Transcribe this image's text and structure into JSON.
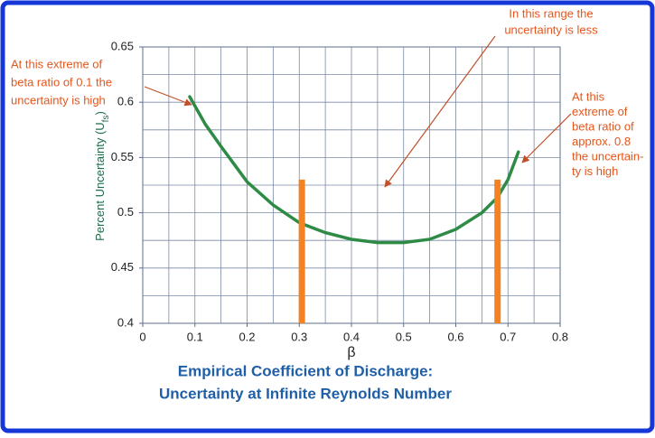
{
  "chart_data": {
    "type": "line",
    "title": [
      "Empirical Coefficient of Discharge:",
      "Uncertainty at Infinite Reynolds Number"
    ],
    "x_label": "β",
    "y_label": [
      "Percent Uncertainty (U",
      "fs",
      ")"
    ],
    "xlim": [
      0,
      0.8
    ],
    "ylim": [
      0.4,
      0.65
    ],
    "xticks": [
      0,
      0.1,
      0.2,
      0.3,
      0.4,
      0.5,
      0.6,
      0.7,
      0.8
    ],
    "yticks": [
      0.4,
      0.45,
      0.5,
      0.55,
      0.6,
      0.65
    ],
    "x_gridlines": [
      0.05,
      0.1,
      0.15,
      0.2,
      0.25,
      0.3,
      0.35,
      0.4,
      0.45,
      0.5,
      0.55,
      0.6,
      0.65,
      0.7,
      0.75
    ],
    "y_gridlines": [
      0.425,
      0.45,
      0.475,
      0.5,
      0.525,
      0.55,
      0.575,
      0.6,
      0.625
    ],
    "grid": true,
    "series": [
      {
        "color": "#2e8b45",
        "x": [
          0.09,
          0.12,
          0.15,
          0.2,
          0.25,
          0.3,
          0.35,
          0.4,
          0.45,
          0.5,
          0.55,
          0.6,
          0.65,
          0.68,
          0.7,
          0.72
        ],
        "values": [
          0.605,
          0.58,
          0.56,
          0.528,
          0.507,
          0.491,
          0.482,
          0.476,
          0.473,
          0.473,
          0.476,
          0.485,
          0.5,
          0.514,
          0.53,
          0.555
        ]
      }
    ],
    "markers": {
      "color": "#f58220",
      "x": [
        0.305,
        0.68
      ],
      "top": [
        0.53,
        0.53
      ]
    },
    "annotations": [
      {
        "lines": [
          "At this extreme of",
          "beta ratio of 0.1 the",
          "uncertainty is high"
        ]
      },
      {
        "lines": [
          "In this range the",
          "uncertainty is less"
        ]
      },
      {
        "lines": [
          "At this",
          "extreme of",
          "beta ratio of",
          "approx. 0.8",
          "the uncertain-",
          "ty is high"
        ]
      }
    ]
  }
}
